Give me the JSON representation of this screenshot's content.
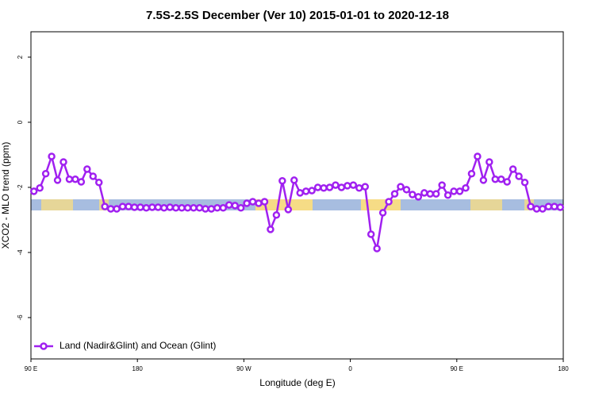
{
  "chart_data": {
    "type": "line",
    "title": "7.5S-2.5S December (Ver 10)   2015-01-01 to 2020-12-18",
    "x_label": "Longitude (deg E)",
    "y_label": "XCO2 - MLO trend (ppm)",
    "x": [
      92.5,
      97.5,
      102.5,
      107.5,
      112.5,
      117.5,
      122.5,
      127.5,
      132.5,
      137.5,
      142.5,
      147.5,
      152.5,
      157.5,
      162.5,
      167.5,
      172.5,
      177.5,
      182.5,
      187.5,
      192.5,
      197.5,
      202.5,
      207.5,
      212.5,
      217.5,
      222.5,
      227.5,
      232.5,
      237.5,
      242.5,
      247.5,
      252.5,
      257.5,
      262.5,
      267.5,
      272.5,
      277.5,
      282.5,
      287.5,
      292.5,
      297.5,
      302.5,
      307.5,
      312.5,
      317.5,
      322.5,
      327.5,
      332.5,
      337.5,
      342.5,
      347.5,
      352.5,
      357.5,
      362.5,
      367.5,
      372.5,
      377.5,
      382.5,
      387.5,
      392.5,
      397.5,
      402.5,
      407.5,
      412.5,
      417.5,
      422.5,
      427.5,
      432.5,
      437.5,
      442.5,
      447.5,
      452.5,
      457.5,
      462.5,
      467.5,
      472.5,
      477.5,
      482.5,
      487.5,
      492.5,
      497.5,
      502.5,
      507.5,
      512.5,
      517.5,
      522.5,
      527.5,
      532.5,
      537.5
    ],
    "series": [
      {
        "name": "Land (Nadir&Glint) and Ocean (Glint)",
        "color": "#a020f0",
        "values": [
          -2.12,
          -2.02,
          -1.58,
          -1.05,
          -1.78,
          -1.22,
          -1.75,
          -1.75,
          -1.83,
          -1.44,
          -1.66,
          -1.85,
          -2.59,
          -2.66,
          -2.66,
          -2.59,
          -2.59,
          -2.61,
          -2.61,
          -2.63,
          -2.61,
          -2.61,
          -2.63,
          -2.61,
          -2.63,
          -2.63,
          -2.63,
          -2.63,
          -2.63,
          -2.66,
          -2.66,
          -2.63,
          -2.63,
          -2.54,
          -2.56,
          -2.63,
          -2.49,
          -2.44,
          -2.49,
          -2.44,
          -3.29,
          -2.85,
          -1.8,
          -2.68,
          -1.78,
          -2.17,
          -2.12,
          -2.1,
          -2.0,
          -2.02,
          -2.0,
          -1.93,
          -2.0,
          -1.95,
          -1.93,
          -2.02,
          -1.98,
          -3.44,
          -3.88,
          -2.78,
          -2.44,
          -2.2,
          -1.98,
          -2.07,
          -2.22,
          -2.29,
          -2.17,
          -2.2,
          -2.2,
          -1.93,
          -2.24,
          -2.12,
          -2.12,
          -2.02,
          -1.58,
          -1.05,
          -1.78,
          -1.22,
          -1.75,
          -1.75,
          -1.83,
          -1.44,
          -1.66,
          -1.85,
          -2.59,
          -2.66,
          -2.66,
          -2.59,
          -2.59,
          -2.61
        ]
      }
    ],
    "xlim": [
      90,
      540
    ],
    "xticks": [
      {
        "value": 90,
        "label": "90 E"
      },
      180,
      {
        "value": 270,
        "label": "90 W"
      },
      {
        "value": 360,
        "label": "0"
      },
      {
        "value": 450,
        "label": "90 E"
      },
      {
        "value": 540,
        "label": "180"
      }
    ],
    "ylim": [
      -7.27,
      2.78
    ],
    "yticks": [
      -6,
      -4,
      -2,
      0,
      2
    ],
    "legend": "bottom-left"
  }
}
